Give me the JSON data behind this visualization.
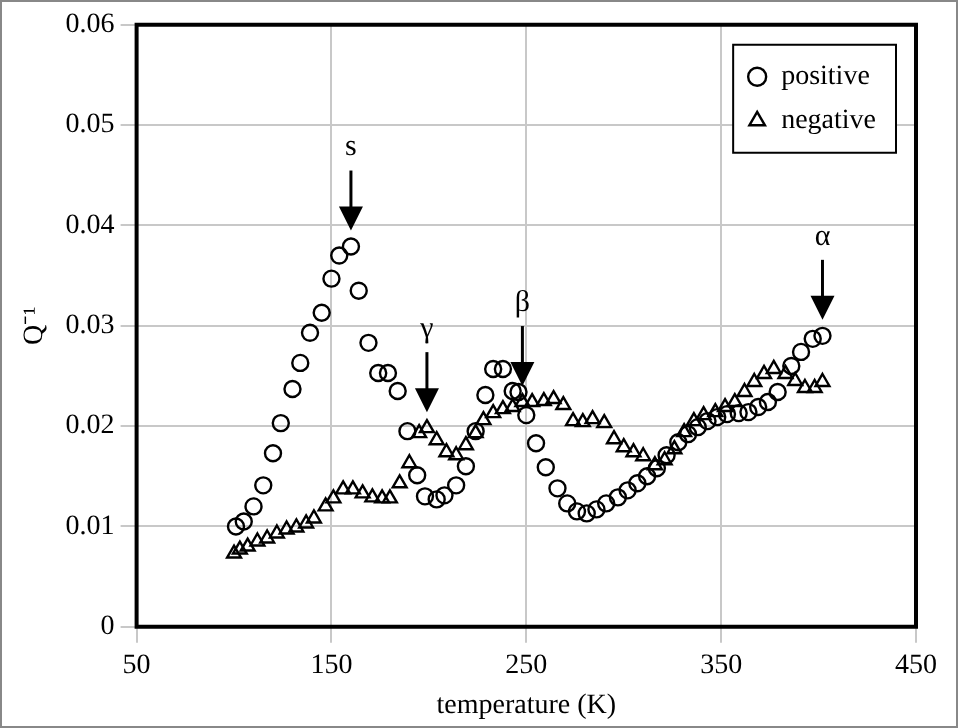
{
  "chart_data": {
    "type": "scatter",
    "xlabel": "temperature (K)",
    "ylabel": "Q⁻¹",
    "xlim": [
      50,
      450
    ],
    "xticks": [
      50,
      150,
      250,
      350,
      450
    ],
    "ylim": [
      0,
      0.06
    ],
    "yticks": [
      0,
      0.01,
      0.02,
      0.03,
      0.04,
      0.05,
      0.06
    ],
    "grid": true,
    "legend": "top right",
    "series": [
      {
        "name": "positive",
        "color": "#000000",
        "marker": "circle",
        "x": [
          101,
          105,
          110,
          115,
          120,
          124,
          130,
          134,
          139,
          145,
          150,
          154,
          160,
          164,
          169,
          174,
          179,
          184,
          189,
          194,
          198,
          204,
          208,
          214,
          219,
          224,
          229,
          233,
          238,
          243,
          246,
          250,
          255,
          260,
          266,
          271,
          276,
          281,
          286,
          291,
          297,
          302,
          307,
          312,
          317,
          322,
          328,
          333,
          338,
          343,
          348,
          353,
          359,
          364,
          369,
          374,
          379,
          386,
          391,
          397,
          402
        ],
        "values": [
          0.01,
          0.0105,
          0.012,
          0.0141,
          0.0173,
          0.0203,
          0.0237,
          0.0263,
          0.0293,
          0.0313,
          0.0347,
          0.037,
          0.0379,
          0.0335,
          0.0283,
          0.0253,
          0.0253,
          0.0235,
          0.0195,
          0.0151,
          0.013,
          0.0127,
          0.0131,
          0.0141,
          0.016,
          0.0195,
          0.0231,
          0.0257,
          0.0257,
          0.0235,
          0.0234,
          0.0211,
          0.0183,
          0.0159,
          0.0138,
          0.0123,
          0.0115,
          0.0113,
          0.0117,
          0.0123,
          0.0129,
          0.0136,
          0.0143,
          0.015,
          0.0158,
          0.0171,
          0.0184,
          0.0192,
          0.0199,
          0.0205,
          0.0209,
          0.0212,
          0.0213,
          0.0214,
          0.0219,
          0.0224,
          0.0234,
          0.026,
          0.0274,
          0.0287,
          0.029
        ]
      },
      {
        "name": "negative",
        "color": "#000000",
        "marker": "triangle",
        "x": [
          100,
          103,
          107,
          112,
          117,
          122,
          127,
          132,
          137,
          141,
          147,
          151,
          156,
          161,
          166,
          171,
          176,
          180,
          185,
          190,
          195,
          199,
          204,
          209,
          214,
          219,
          224,
          228,
          233,
          238,
          243,
          248,
          253,
          259,
          264,
          269,
          274,
          279,
          284,
          290,
          295,
          300,
          305,
          310,
          316,
          321,
          326,
          331,
          336,
          341,
          347,
          352,
          357,
          362,
          367,
          372,
          377,
          383,
          388,
          393,
          398,
          402
        ],
        "values": [
          0.0073,
          0.0077,
          0.008,
          0.0085,
          0.0088,
          0.0093,
          0.0097,
          0.0099,
          0.0103,
          0.0108,
          0.012,
          0.0128,
          0.0137,
          0.0137,
          0.0133,
          0.0129,
          0.0128,
          0.0128,
          0.0143,
          0.0163,
          0.0193,
          0.0198,
          0.0186,
          0.0174,
          0.0171,
          0.0181,
          0.0193,
          0.0206,
          0.0213,
          0.0217,
          0.0219,
          0.0224,
          0.0224,
          0.0225,
          0.0227,
          0.0221,
          0.0205,
          0.0204,
          0.0207,
          0.0203,
          0.0187,
          0.0179,
          0.0174,
          0.017,
          0.0161,
          0.0166,
          0.0177,
          0.0194,
          0.0205,
          0.0211,
          0.0214,
          0.0219,
          0.0224,
          0.0234,
          0.0244,
          0.0252,
          0.0257,
          0.0252,
          0.0245,
          0.0238,
          0.0238,
          0.0244
        ]
      }
    ],
    "annotations": [
      {
        "text": "s",
        "x": 160,
        "y": 0.0379
      },
      {
        "text": "γ",
        "x": 199,
        "y": 0.0198
      },
      {
        "text": "β",
        "x": 248,
        "y": 0.0224
      },
      {
        "text": "α",
        "x": 402,
        "y": 0.029
      }
    ]
  }
}
